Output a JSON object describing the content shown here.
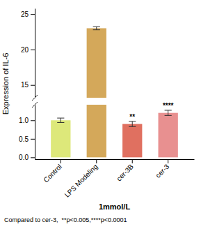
{
  "chart_data": {
    "type": "bar",
    "categories": [
      "Control",
      "LPS Modeling",
      "cer-3B",
      "cer-3"
    ],
    "values": [
      1.0,
      23.0,
      0.9,
      1.2
    ],
    "errors": [
      0.06,
      0.22,
      0.07,
      0.07
    ],
    "colors": [
      "#dde87a",
      "#d4a85a",
      "#e07060",
      "#e89090"
    ],
    "ylabel": "Expression of IL-6",
    "xlabel": "1mmol/L",
    "footnote": "Compared to cer-3,  **p<0.005,****p<0.0001",
    "annotations": [
      {
        "x": "cer-3B",
        "text": "**"
      },
      {
        "x": "cer-3",
        "text": "****"
      }
    ],
    "ylim": [
      -0.05,
      25.8
    ],
    "ybreak": [
      1.42,
      13.2
    ],
    "yticks": [
      {
        "value": 0,
        "label": "0.0"
      },
      0.5,
      {
        "value": 1.0,
        "label": "1.0"
      },
      15,
      20,
      25
    ],
    "grid": false
  }
}
